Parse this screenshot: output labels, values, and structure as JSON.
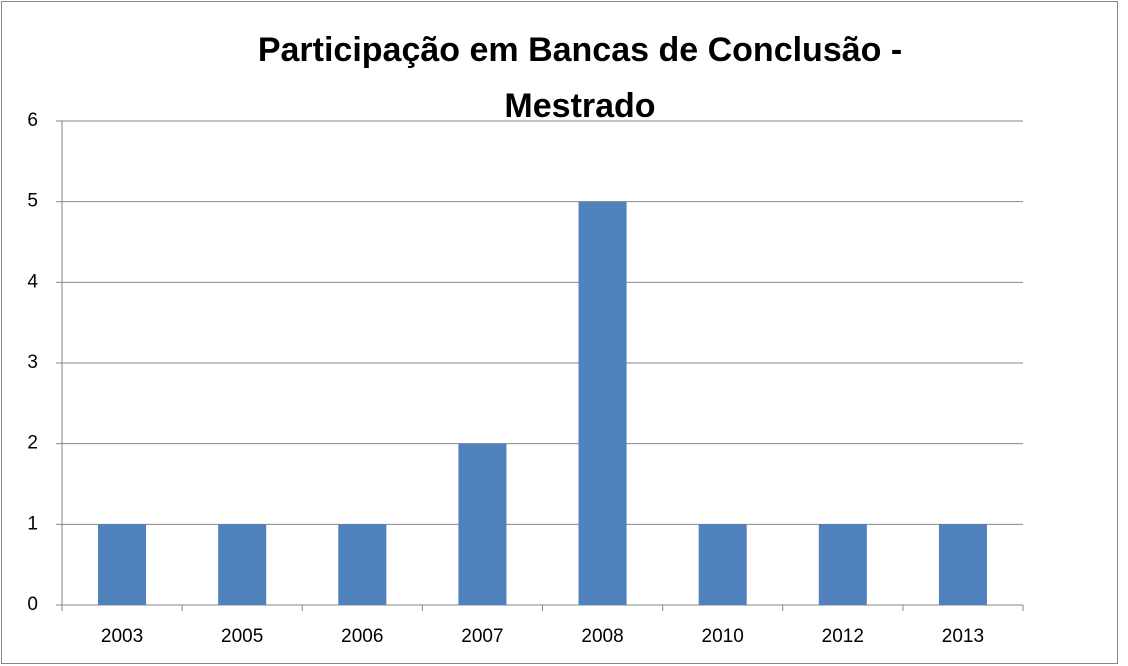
{
  "chart_data": {
    "type": "bar",
    "title": "Participação em Bancas de Conclusão - Mestrado",
    "categories": [
      "2003",
      "2005",
      "2006",
      "2007",
      "2008",
      "2010",
      "2012",
      "2013"
    ],
    "values": [
      1,
      1,
      1,
      2,
      5,
      1,
      1,
      1
    ],
    "color": "#4f81bd",
    "ylim": [
      0,
      6
    ],
    "yticks": [
      0,
      1,
      2,
      3,
      4,
      5,
      6
    ],
    "grid": true
  }
}
